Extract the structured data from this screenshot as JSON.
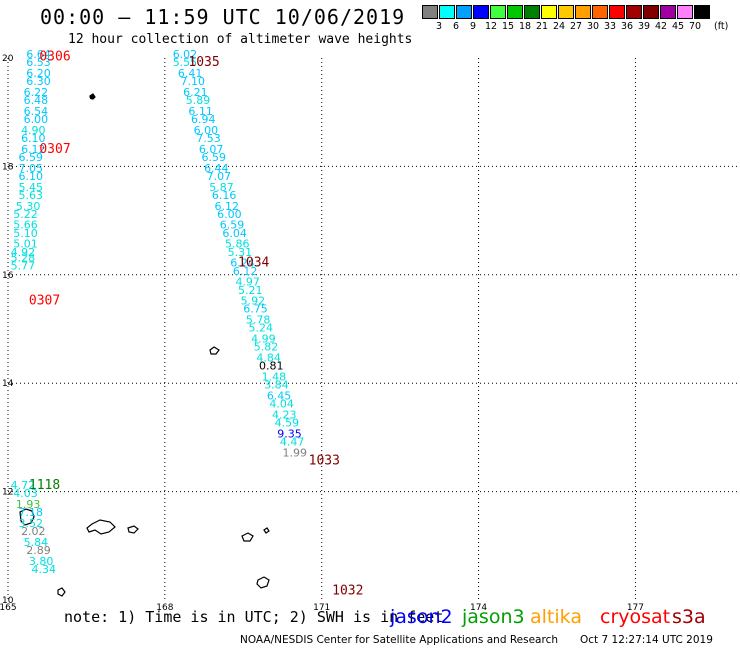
{
  "header": {
    "title": "00:00 – 11:59 UTC 10/06/2019",
    "subtitle": "12 hour collection of altimeter wave heights"
  },
  "color_scale": {
    "labels": [
      "3",
      "6",
      "9",
      "12",
      "15",
      "18",
      "21",
      "24",
      "27",
      "30",
      "33",
      "36",
      "39",
      "42",
      "45",
      "70"
    ],
    "unit": "(ft)",
    "colors": [
      "#808080",
      "#00ffff",
      "#00a0ff",
      "#0000ff",
      "#40ff40",
      "#00c800",
      "#008000",
      "#ffff00",
      "#ffc800",
      "#ffa000",
      "#ff6400",
      "#ff0000",
      "#a00000",
      "#800000",
      "#a000a0",
      "#ff80ff",
      "#000000"
    ]
  },
  "footer": {
    "note": "note: 1) Time is in UTC; 2) SWH is in feet",
    "credit": "NOAA/NESDIS Center for Satellite Applications and Research",
    "timestamp": "Oct  7 12:27:14 UTC 2019",
    "satellites": [
      {
        "name": "jason2",
        "color": "#0000ff"
      },
      {
        "name": "jason3",
        "color": "#00a000"
      },
      {
        "name": "altika",
        "color": "#ffa000"
      },
      {
        "name": "cryosat",
        "color": "#ff0000"
      },
      {
        "name": "s3a",
        "color": "#a00000"
      }
    ]
  },
  "chart_data": {
    "type": "scatter",
    "title": "00:00 – 11:59 UTC 10/06/2019",
    "xlabel": "",
    "ylabel": "",
    "xlim": [
      165,
      179
    ],
    "ylim": [
      10,
      20
    ],
    "x_ticks": [
      "165",
      "168",
      "171",
      "174",
      "177"
    ],
    "y_ticks": [
      "10",
      "12",
      "14",
      "16",
      "18",
      "20"
    ],
    "grid": true,
    "track_labels": [
      {
        "text": "0306",
        "lon": 165.6,
        "lat": 19.95,
        "color": "#ff0000"
      },
      {
        "text": "0307",
        "lon": 165.6,
        "lat": 18.25,
        "color": "#ff0000"
      },
      {
        "text": "0307",
        "lon": 165.4,
        "lat": 15.45,
        "color": "#ff0000"
      },
      {
        "text": "1035",
        "lon": 168.45,
        "lat": 19.85,
        "color": "#800000"
      },
      {
        "text": "1034",
        "lon": 169.4,
        "lat": 16.15,
        "color": "#800000"
      },
      {
        "text": "1033",
        "lon": 170.75,
        "lat": 12.5,
        "color": "#800000"
      },
      {
        "text": "1118",
        "lon": 165.4,
        "lat": 12.05,
        "color": "#008000"
      },
      {
        "text": "1032",
        "lon": 171.2,
        "lat": 10.1,
        "color": "#800000"
      }
    ],
    "series": [
      {
        "name": "0306/0307",
        "points": [
          {
            "lon": 165.35,
            "lat": 20.0,
            "v": "6.64",
            "color": "#00c8ff"
          },
          {
            "lon": 165.35,
            "lat": 19.85,
            "v": "6.53",
            "color": "#00c8ff"
          },
          {
            "lon": 165.35,
            "lat": 19.65,
            "v": "6.20",
            "color": "#00c8ff"
          },
          {
            "lon": 165.35,
            "lat": 19.5,
            "v": "6.30",
            "color": "#00c8ff"
          },
          {
            "lon": 165.3,
            "lat": 19.3,
            "v": "6.22",
            "color": "#00c8ff"
          },
          {
            "lon": 165.3,
            "lat": 19.15,
            "v": "6.48",
            "color": "#00c8ff"
          },
          {
            "lon": 165.3,
            "lat": 18.95,
            "v": "6.54",
            "color": "#00c8ff"
          },
          {
            "lon": 165.3,
            "lat": 18.8,
            "v": "6.00",
            "color": "#00c8ff"
          },
          {
            "lon": 165.25,
            "lat": 18.6,
            "v": "4.90",
            "color": "#00e0e0"
          },
          {
            "lon": 165.25,
            "lat": 18.45,
            "v": "6.10",
            "color": "#00c8ff"
          },
          {
            "lon": 165.25,
            "lat": 18.25,
            "v": "6.12",
            "color": "#00c8ff"
          },
          {
            "lon": 165.2,
            "lat": 18.1,
            "v": "6.59",
            "color": "#00c8ff"
          },
          {
            "lon": 165.2,
            "lat": 17.9,
            "v": "7.05",
            "color": "#00c8ff"
          },
          {
            "lon": 165.2,
            "lat": 17.75,
            "v": "6.10",
            "color": "#00c8ff"
          },
          {
            "lon": 165.2,
            "lat": 17.55,
            "v": "5.45",
            "color": "#00e0e0"
          },
          {
            "lon": 165.2,
            "lat": 17.4,
            "v": "5.63",
            "color": "#00e0e0"
          },
          {
            "lon": 165.15,
            "lat": 17.2,
            "v": "5.30",
            "color": "#00e0e0"
          },
          {
            "lon": 165.1,
            "lat": 17.05,
            "v": "5.22",
            "color": "#00e0e0"
          },
          {
            "lon": 165.1,
            "lat": 16.85,
            "v": "5.66",
            "color": "#00e0e0"
          },
          {
            "lon": 165.1,
            "lat": 16.7,
            "v": "5.10",
            "color": "#00e0e0"
          },
          {
            "lon": 165.1,
            "lat": 16.5,
            "v": "5.01",
            "color": "#00e0e0"
          },
          {
            "lon": 165.05,
            "lat": 16.35,
            "v": "4.92",
            "color": "#00e0e0"
          },
          {
            "lon": 165.05,
            "lat": 16.25,
            "v": "5.28",
            "color": "#00e0e0"
          },
          {
            "lon": 165.05,
            "lat": 16.1,
            "v": "5.77",
            "color": "#00e0e0"
          }
        ]
      },
      {
        "name": "1035/1034/1033/1032",
        "points": [
          {
            "lon": 168.15,
            "lat": 20.0,
            "v": "6.02",
            "color": "#00c8ff"
          },
          {
            "lon": 168.15,
            "lat": 19.85,
            "v": "5.55",
            "color": "#00e0e0"
          },
          {
            "lon": 168.25,
            "lat": 19.65,
            "v": "6.41",
            "color": "#00c8ff"
          },
          {
            "lon": 168.3,
            "lat": 19.5,
            "v": "7.10",
            "color": "#00c8ff"
          },
          {
            "lon": 168.35,
            "lat": 19.3,
            "v": "6.21",
            "color": "#00c8ff"
          },
          {
            "lon": 168.4,
            "lat": 19.15,
            "v": "5.89",
            "color": "#00e0e0"
          },
          {
            "lon": 168.45,
            "lat": 18.95,
            "v": "6.11",
            "color": "#00c8ff"
          },
          {
            "lon": 168.5,
            "lat": 18.8,
            "v": "6.94",
            "color": "#00c8ff"
          },
          {
            "lon": 168.55,
            "lat": 18.6,
            "v": "6.00",
            "color": "#00c8ff"
          },
          {
            "lon": 168.6,
            "lat": 18.45,
            "v": "7.53",
            "color": "#00c8ff"
          },
          {
            "lon": 168.65,
            "lat": 18.25,
            "v": "6.07",
            "color": "#00c8ff"
          },
          {
            "lon": 168.7,
            "lat": 18.1,
            "v": "6.59",
            "color": "#00c8ff"
          },
          {
            "lon": 168.75,
            "lat": 17.9,
            "v": "6.44",
            "color": "#00c8ff"
          },
          {
            "lon": 168.8,
            "lat": 17.75,
            "v": "7.07",
            "color": "#00c8ff"
          },
          {
            "lon": 168.85,
            "lat": 17.55,
            "v": "5.87",
            "color": "#00e0e0"
          },
          {
            "lon": 168.9,
            "lat": 17.4,
            "v": "6.16",
            "color": "#00c8ff"
          },
          {
            "lon": 168.95,
            "lat": 17.2,
            "v": "6.12",
            "color": "#00c8ff"
          },
          {
            "lon": 169.0,
            "lat": 17.05,
            "v": "6.00",
            "color": "#00c8ff"
          },
          {
            "lon": 169.05,
            "lat": 16.85,
            "v": "6.59",
            "color": "#00c8ff"
          },
          {
            "lon": 169.1,
            "lat": 16.7,
            "v": "6.04",
            "color": "#00c8ff"
          },
          {
            "lon": 169.15,
            "lat": 16.5,
            "v": "5.86",
            "color": "#00e0e0"
          },
          {
            "lon": 169.2,
            "lat": 16.35,
            "v": "5.31",
            "color": "#00e0e0"
          },
          {
            "lon": 169.25,
            "lat": 16.15,
            "v": "6.24",
            "color": "#00c8ff"
          },
          {
            "lon": 169.3,
            "lat": 16.0,
            "v": "6.12",
            "color": "#00c8ff"
          },
          {
            "lon": 169.35,
            "lat": 15.8,
            "v": "4.97",
            "color": "#00e0e0"
          },
          {
            "lon": 169.4,
            "lat": 15.65,
            "v": "5.21",
            "color": "#00e0e0"
          },
          {
            "lon": 169.45,
            "lat": 15.45,
            "v": "5.92",
            "color": "#00e0e0"
          },
          {
            "lon": 169.5,
            "lat": 15.3,
            "v": "6.75",
            "color": "#00c8ff"
          },
          {
            "lon": 169.55,
            "lat": 15.1,
            "v": "5.78",
            "color": "#00e0e0"
          },
          {
            "lon": 169.6,
            "lat": 14.95,
            "v": "5.24",
            "color": "#00e0e0"
          },
          {
            "lon": 169.65,
            "lat": 14.75,
            "v": "4.99",
            "color": "#00e0e0"
          },
          {
            "lon": 169.7,
            "lat": 14.6,
            "v": "5.82",
            "color": "#00e0e0"
          },
          {
            "lon": 169.75,
            "lat": 14.4,
            "v": "4.84",
            "color": "#00e0e0"
          },
          {
            "lon": 169.8,
            "lat": 14.25,
            "v": "0.81",
            "color": "#000000"
          },
          {
            "lon": 169.85,
            "lat": 14.05,
            "v": "1.48",
            "color": "#00e0e0"
          },
          {
            "lon": 169.9,
            "lat": 13.9,
            "v": "3.84",
            "color": "#00e0e0"
          },
          {
            "lon": 169.95,
            "lat": 13.7,
            "v": "6.45",
            "color": "#00c8ff"
          },
          {
            "lon": 170.0,
            "lat": 13.55,
            "v": "4.04",
            "color": "#00e0e0"
          },
          {
            "lon": 170.05,
            "lat": 13.35,
            "v": "4.23",
            "color": "#00e0e0"
          },
          {
            "lon": 170.1,
            "lat": 13.2,
            "v": "4.59",
            "color": "#00e0e0"
          },
          {
            "lon": 170.15,
            "lat": 13.0,
            "v": "9.35",
            "color": "#0000ff"
          },
          {
            "lon": 170.2,
            "lat": 12.85,
            "v": "4.47",
            "color": "#00e0e0"
          },
          {
            "lon": 170.25,
            "lat": 12.65,
            "v": "1.99",
            "color": "#808080"
          }
        ]
      },
      {
        "name": "1118",
        "points": [
          {
            "lon": 165.05,
            "lat": 12.05,
            "v": "4.72",
            "color": "#00e0e0"
          },
          {
            "lon": 165.1,
            "lat": 11.9,
            "v": "4.03",
            "color": "#00e0e0"
          },
          {
            "lon": 165.15,
            "lat": 11.7,
            "v": "1.93",
            "color": "#40c040"
          },
          {
            "lon": 165.2,
            "lat": 11.55,
            "v": "7.18",
            "color": "#00c8ff"
          },
          {
            "lon": 165.2,
            "lat": 11.35,
            "v": "3.52",
            "color": "#00e0e0"
          },
          {
            "lon": 165.25,
            "lat": 11.2,
            "v": "2.02",
            "color": "#808080"
          },
          {
            "lon": 165.3,
            "lat": 11.0,
            "v": "5.84",
            "color": "#00e0e0"
          },
          {
            "lon": 165.35,
            "lat": 10.85,
            "v": "2.89",
            "color": "#808080"
          },
          {
            "lon": 165.4,
            "lat": 10.65,
            "v": "3.80",
            "color": "#00e0e0"
          },
          {
            "lon": 165.45,
            "lat": 10.5,
            "v": "4.34",
            "color": "#00e0e0"
          }
        ]
      }
    ]
  }
}
